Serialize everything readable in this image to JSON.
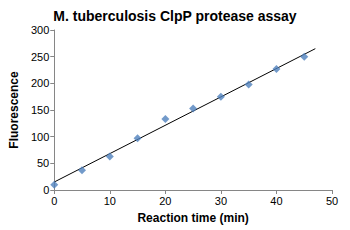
{
  "chart_data": {
    "type": "scatter",
    "title": "M. tuberculosis ClpP protease assay",
    "x_label": "Reaction time (min)",
    "y_label": "Fluorescence",
    "xlim": [
      0,
      50
    ],
    "xticks": [
      0,
      10,
      20,
      30,
      40,
      50
    ],
    "ylim": [
      0,
      300
    ],
    "yticks": [
      0,
      50,
      100,
      150,
      200,
      250,
      300
    ],
    "grid": false,
    "series": [
      {
        "type": "scatter",
        "color": "#4f81bd",
        "marker": "diamond",
        "x": [
          0,
          5,
          10,
          15,
          20,
          25,
          30,
          35,
          40,
          45
        ],
        "values": [
          10,
          37,
          63,
          97,
          133,
          153,
          175,
          198,
          227,
          250
        ]
      },
      {
        "type": "line",
        "color": "#000000",
        "line_style": "solid",
        "x": [
          0,
          47
        ],
        "values": [
          15,
          265
        ]
      }
    ]
  }
}
